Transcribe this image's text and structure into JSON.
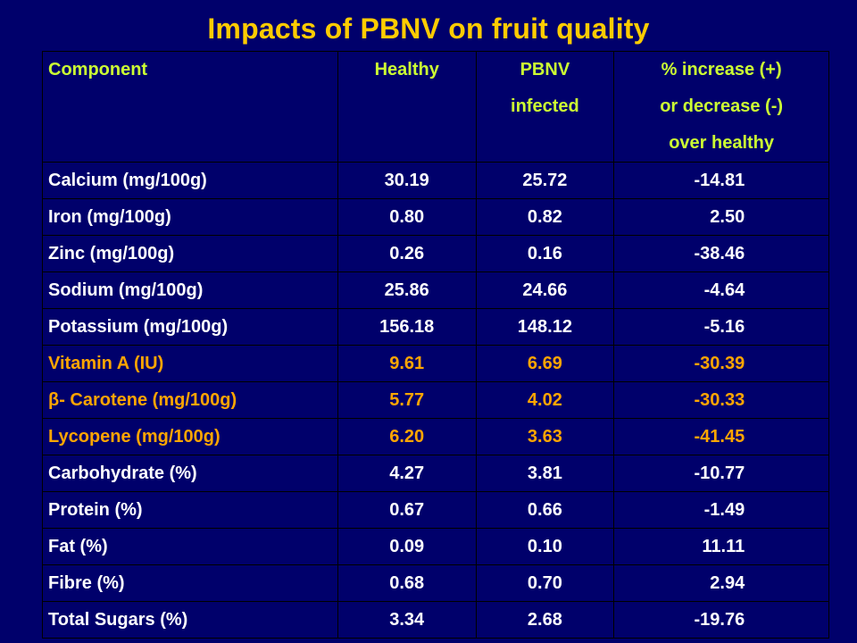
{
  "title": "Impacts of PBNV on fruit quality",
  "table": {
    "headers": [
      [
        "Component"
      ],
      [
        "Healthy"
      ],
      [
        "PBNV",
        "infected"
      ],
      [
        "% increase (+)",
        "or decrease (-)",
        "over healthy"
      ]
    ],
    "rows": [
      {
        "component": "Calcium (mg/100g)",
        "healthy": "30.19",
        "infected": "25.72",
        "change": "-14.81",
        "highlight": false
      },
      {
        "component": "Iron (mg/100g)",
        "healthy": "0.80",
        "infected": "0.82",
        "change": "2.50",
        "highlight": false
      },
      {
        "component": "Zinc (mg/100g)",
        "healthy": "0.26",
        "infected": "0.16",
        "change": "-38.46",
        "highlight": false
      },
      {
        "component": "Sodium (mg/100g)",
        "healthy": "25.86",
        "infected": "24.66",
        "change": "-4.64",
        "highlight": false
      },
      {
        "component": "Potassium (mg/100g)",
        "healthy": "156.18",
        "infected": "148.12",
        "change": "-5.16",
        "highlight": false
      },
      {
        "component": "Vitamin A (IU)",
        "healthy": "9.61",
        "infected": "6.69",
        "change": "-30.39",
        "highlight": true
      },
      {
        "component": "β- Carotene (mg/100g)",
        "healthy": "5.77",
        "infected": "4.02",
        "change": "-30.33",
        "highlight": true
      },
      {
        "component": "Lycopene (mg/100g)",
        "healthy": "6.20",
        "infected": "3.63",
        "change": "-41.45",
        "highlight": true
      },
      {
        "component": "Carbohydrate (%)",
        "healthy": "4.27",
        "infected": "3.81",
        "change": "-10.77",
        "highlight": false
      },
      {
        "component": "Protein (%)",
        "healthy": "0.67",
        "infected": "0.66",
        "change": "-1.49",
        "highlight": false
      },
      {
        "component": "Fat (%)",
        "healthy": "0.09",
        "infected": "0.10",
        "change": "11.11",
        "highlight": false
      },
      {
        "component": "Fibre (%)",
        "healthy": "0.68",
        "infected": "0.70",
        "change": "2.94",
        "highlight": false
      },
      {
        "component": "Total Sugars (%)",
        "healthy": "3.34",
        "infected": "2.68",
        "change": "-19.76",
        "highlight": false
      }
    ]
  },
  "colors": {
    "background": "#00006b",
    "title": "#ffcc00",
    "header": "#ccff33",
    "text": "#ffffff",
    "highlight": "#ffa500"
  }
}
